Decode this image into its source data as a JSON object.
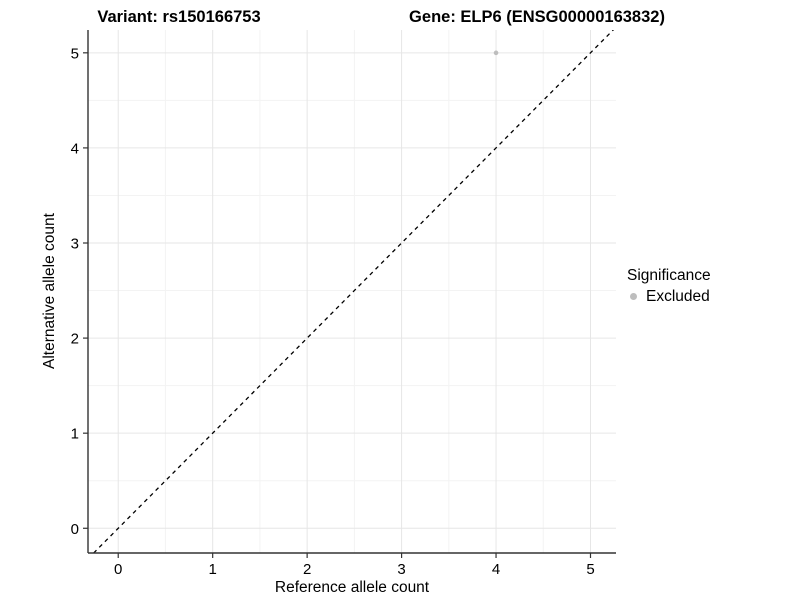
{
  "titles": {
    "variant": "Variant: rs150166753",
    "gene": "Gene: ELP6 (ENSG00000163832)"
  },
  "chart_data": {
    "type": "scatter",
    "xlabel": "Reference allele count",
    "ylabel": "Alternative allele count",
    "xlim": [
      -0.32,
      5.27
    ],
    "ylim": [
      -0.26,
      5.24
    ],
    "x_ticks": [
      0,
      1,
      2,
      3,
      4,
      5
    ],
    "y_ticks": [
      0,
      1,
      2,
      3,
      4,
      5
    ],
    "x_minor": [
      0.5,
      1.5,
      2.5,
      3.5,
      4.5
    ],
    "y_minor": [
      0.5,
      1.5,
      2.5,
      3.5,
      4.5
    ],
    "grid": "major+minor",
    "series": [
      {
        "name": "Excluded",
        "color": "#bebebe",
        "points": [
          {
            "x": 4,
            "y": 5
          }
        ]
      }
    ],
    "abline": {
      "slope": 1,
      "intercept": 0,
      "style": "dashed",
      "color": "#000000"
    },
    "legend": {
      "title": "Significance",
      "position": "right",
      "entries": [
        {
          "label": "Excluded",
          "color": "#bebebe"
        }
      ]
    }
  },
  "colors": {
    "background": "#ffffff",
    "grid_major": "#e6e6e6",
    "grid_minor": "#f3f3f3",
    "axis_line": "#333333",
    "tick_mark": "#333333",
    "text": "#000000",
    "point": "#bebebe"
  }
}
